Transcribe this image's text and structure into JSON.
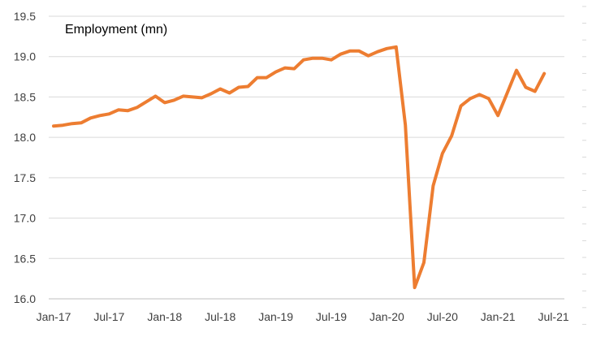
{
  "chart_data": {
    "type": "line",
    "title": "Employment (mn)",
    "xlabel": "",
    "ylabel": "",
    "ylim": [
      16.0,
      19.5
    ],
    "y_ticks": [
      "16.0",
      "16.5",
      "17.0",
      "17.5",
      "18.0",
      "18.5",
      "19.0",
      "19.5"
    ],
    "x_ticks": [
      "Jan-17",
      "Jul-17",
      "Jan-18",
      "Jul-18",
      "Jan-19",
      "Jul-19",
      "Jan-20",
      "Jul-20",
      "Jan-21",
      "Jul-21"
    ],
    "grid": "horizontal",
    "legend": "none",
    "line_color": "#ED7D31",
    "series": [
      {
        "x": [
          "Jan-17",
          "Feb-17",
          "Mar-17",
          "Apr-17",
          "May-17",
          "Jun-17",
          "Jul-17",
          "Aug-17",
          "Sep-17",
          "Oct-17",
          "Nov-17",
          "Dec-17",
          "Jan-18",
          "Feb-18",
          "Mar-18",
          "Apr-18",
          "May-18",
          "Jun-18",
          "Jul-18",
          "Aug-18",
          "Sep-18",
          "Oct-18",
          "Nov-18",
          "Dec-18",
          "Jan-19",
          "Feb-19",
          "Mar-19",
          "Apr-19",
          "May-19",
          "Jun-19",
          "Jul-19",
          "Aug-19",
          "Sep-19",
          "Oct-19",
          "Nov-19",
          "Dec-19",
          "Jan-20",
          "Feb-20",
          "Mar-20",
          "Apr-20",
          "May-20",
          "Jun-20",
          "Jul-20",
          "Aug-20",
          "Sep-20",
          "Oct-20",
          "Nov-20",
          "Dec-20",
          "Jan-21",
          "Feb-21",
          "Mar-21",
          "Apr-21",
          "May-21",
          "Jun-21"
        ],
        "values": [
          18.14,
          18.15,
          18.17,
          18.18,
          18.24,
          18.27,
          18.29,
          18.34,
          18.33,
          18.37,
          18.44,
          18.51,
          18.43,
          18.46,
          18.51,
          18.5,
          18.49,
          18.54,
          18.6,
          18.55,
          18.62,
          18.63,
          18.74,
          18.74,
          18.81,
          18.86,
          18.85,
          18.96,
          18.98,
          18.98,
          18.96,
          19.03,
          19.07,
          19.07,
          19.01,
          19.06,
          19.1,
          19.12,
          18.15,
          16.14,
          16.45,
          17.4,
          17.8,
          18.02,
          18.39,
          18.48,
          18.53,
          18.48,
          18.27,
          18.55,
          18.83,
          18.62,
          18.57,
          18.79
        ]
      }
    ]
  }
}
